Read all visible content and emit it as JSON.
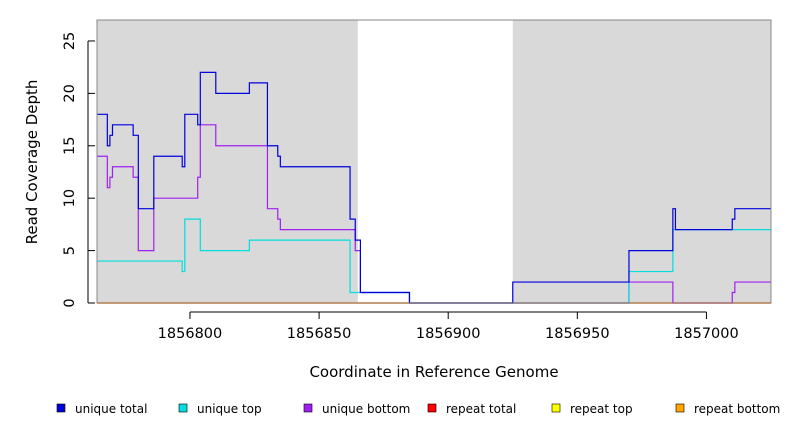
{
  "chart_data": {
    "type": "line",
    "xlabel": "Coordinate in Reference Genome",
    "ylabel": "Read Coverage Depth",
    "xlim": [
      1856764,
      1857025
    ],
    "ylim": [
      0,
      27
    ],
    "x_ticks": [
      1856800,
      1856850,
      1856900,
      1856950,
      1857000
    ],
    "x_tick_labels": [
      "1856800",
      "1856850",
      "1856900",
      "1856950",
      "1857000"
    ],
    "y_ticks": [
      0,
      5,
      10,
      15,
      20,
      25
    ],
    "y_tick_labels": [
      "0",
      "5",
      "10",
      "15",
      "20",
      "25"
    ],
    "shaded_regions": [
      [
        1856764,
        1856865
      ],
      [
        1856925,
        1857025
      ]
    ],
    "series": [
      {
        "name": "unique total",
        "color": "#0000dd",
        "x": [
          1856764,
          1856768,
          1856769,
          1856770,
          1856772,
          1856778,
          1856780,
          1856786,
          1856797,
          1856798,
          1856803,
          1856804,
          1856810,
          1856823,
          1856830,
          1856834,
          1856835,
          1856862,
          1856864,
          1856866,
          1856885,
          1856925,
          1856970,
          1856987,
          1856988,
          1857010,
          1857011,
          1857025
        ],
        "y": [
          18,
          15,
          16,
          17,
          17,
          16,
          9,
          14,
          13,
          18,
          17,
          22,
          20,
          21,
          15,
          14,
          13,
          8,
          6,
          1,
          0,
          2,
          5,
          9,
          7,
          8,
          9,
          9
        ]
      },
      {
        "name": "unique top",
        "color": "#00dddd",
        "x": [
          1856764,
          1856797,
          1856798,
          1856804,
          1856823,
          1856862,
          1856866,
          1856885,
          1856925,
          1856970,
          1856987,
          1857010,
          1857025
        ],
        "y": [
          4,
          3,
          8,
          5,
          6,
          1,
          1,
          0,
          0,
          3,
          7,
          7,
          7
        ]
      },
      {
        "name": "unique bottom",
        "color": "#a020f0",
        "x": [
          1856764,
          1856768,
          1856769,
          1856770,
          1856778,
          1856780,
          1856786,
          1856803,
          1856804,
          1856810,
          1856830,
          1856834,
          1856835,
          1856864,
          1856866,
          1856885,
          1856925,
          1856970,
          1856987,
          1857010,
          1857011,
          1857025
        ],
        "y": [
          14,
          11,
          12,
          13,
          12,
          5,
          10,
          12,
          17,
          15,
          9,
          8,
          7,
          5,
          1,
          0,
          0,
          2,
          0,
          1,
          2,
          2
        ]
      },
      {
        "name": "repeat total",
        "color": "#ff0000",
        "x": [
          1856764,
          1857025
        ],
        "y": [
          0,
          0
        ]
      },
      {
        "name": "repeat top",
        "color": "#ffff00",
        "x": [
          1856764,
          1857025
        ],
        "y": [
          0,
          0
        ]
      },
      {
        "name": "repeat bottom",
        "color": "#ffa500",
        "x": [
          1856764,
          1857025
        ],
        "y": [
          0,
          0
        ]
      }
    ],
    "legend": {
      "placement": "bottom",
      "entries": [
        "unique total",
        "unique top",
        "unique bottom",
        "repeat total",
        "repeat top",
        "repeat bottom"
      ]
    }
  }
}
